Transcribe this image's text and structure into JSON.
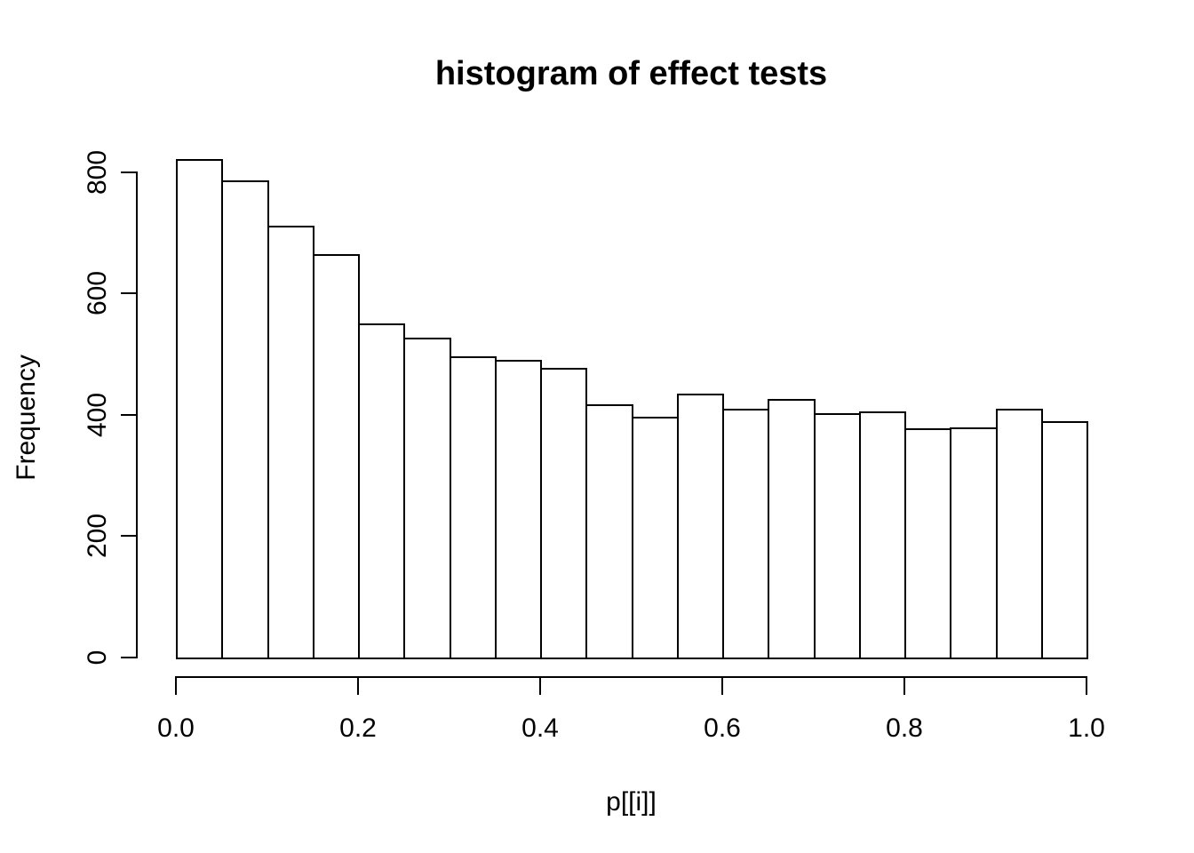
{
  "figure": {
    "background": "#ffffff",
    "foreground": "#000000"
  },
  "chart_data": {
    "type": "bar",
    "subtype": "histogram",
    "title": "histogram of effect tests",
    "xlabel": "p[[i]]",
    "ylabel": "Frequency",
    "bin_edges": [
      0,
      0.05,
      0.1,
      0.15,
      0.2,
      0.25,
      0.3,
      0.35,
      0.4,
      0.45,
      0.5,
      0.55,
      0.6,
      0.65,
      0.7,
      0.75,
      0.8,
      0.85,
      0.9,
      0.95,
      1.0
    ],
    "values": [
      821,
      786,
      711,
      664,
      551,
      527,
      496,
      491,
      477,
      417,
      397,
      435,
      410,
      426,
      403,
      405,
      377,
      379,
      410,
      389
    ],
    "xlim": [
      0,
      1
    ],
    "ylim": [
      0,
      830
    ],
    "x_ticks": [
      {
        "value": 0.0,
        "label": "0.0"
      },
      {
        "value": 0.2,
        "label": "0.2"
      },
      {
        "value": 0.4,
        "label": "0.4"
      },
      {
        "value": 0.6,
        "label": "0.6"
      },
      {
        "value": 0.8,
        "label": "0.8"
      },
      {
        "value": 1.0,
        "label": "1.0"
      }
    ],
    "y_ticks": [
      {
        "value": 0,
        "label": "0"
      },
      {
        "value": 200,
        "label": "200"
      },
      {
        "value": 400,
        "label": "400"
      },
      {
        "value": 600,
        "label": "600"
      },
      {
        "value": 800,
        "label": "800"
      }
    ],
    "bar_fill": "#ffffff",
    "bar_border": "#000000",
    "grid": false,
    "legend": false
  }
}
